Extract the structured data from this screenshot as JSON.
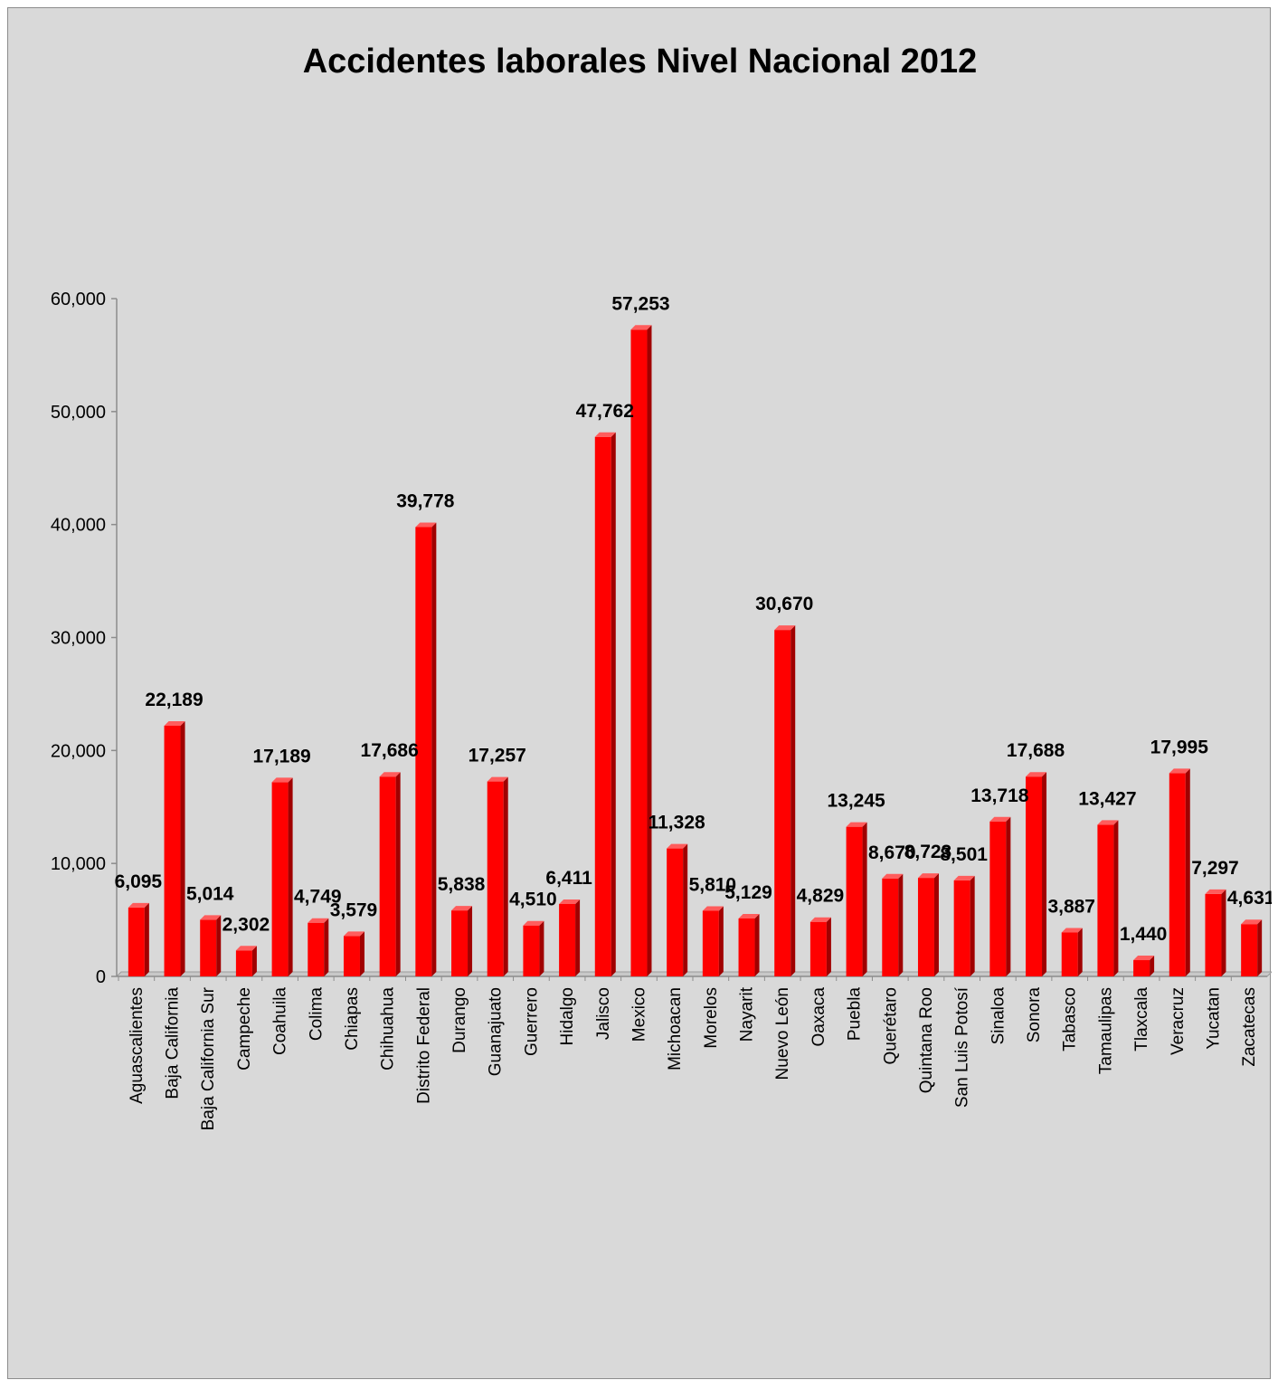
{
  "chart_data": {
    "type": "bar",
    "title": "Accidentes laborales Nivel Nacional 2012",
    "xlabel": "",
    "ylabel": "",
    "ylim": [
      0,
      60000
    ],
    "yticks": [
      0,
      10000,
      20000,
      30000,
      40000,
      50000,
      60000
    ],
    "ytick_labels": [
      "0",
      "10,000",
      "20,000",
      "30,000",
      "40,000",
      "50,000",
      "60,000"
    ],
    "grid": false,
    "legend": "none",
    "bar_color": "#ff0000",
    "bar_style": "3d-column",
    "categories": [
      "Aguascalientes",
      "Baja California",
      "Baja California Sur",
      "Campeche",
      "Coahuila",
      "Colima",
      "Chiapas",
      "Chihuahua",
      "Distrito Federal",
      "Durango",
      "Guanajuato",
      "Guerrero",
      "Hidalgo",
      "Jalisco",
      "Mexico",
      "Michoacan",
      "Morelos",
      "Nayarit",
      "Nuevo León",
      "Oaxaca",
      "Puebla",
      "Querétaro",
      "Quintana Roo",
      "San Luis Potosí",
      "Sinaloa",
      "Sonora",
      "Tabasco",
      "Tamaulipas",
      "Tlaxcala",
      "Veracruz",
      "Yucatan",
      "Zacatecas"
    ],
    "values": [
      6095,
      22189,
      5014,
      2302,
      17189,
      4749,
      3579,
      17686,
      39778,
      5838,
      17257,
      4510,
      6411,
      47762,
      57253,
      11328,
      5810,
      5129,
      30670,
      4829,
      13245,
      8670,
      8723,
      8501,
      13718,
      17688,
      3887,
      13427,
      1440,
      17995,
      7297,
      4631
    ],
    "value_labels": [
      "6,095",
      "22,189",
      "5,014",
      "2,302",
      "17,189",
      "4,749",
      "3,579",
      "17,686",
      "39,778",
      "5,838",
      "17,257",
      "4,510",
      "6,411",
      "47,762",
      "57,253",
      "11,328",
      "5,810",
      "5,129",
      "30,670",
      "4,829",
      "13,245",
      "8,670",
      "8,723",
      "8,501",
      "13,718",
      "17,688",
      "3,887",
      "13,427",
      "1,440",
      "17,995",
      "7,297",
      "4,631"
    ]
  }
}
